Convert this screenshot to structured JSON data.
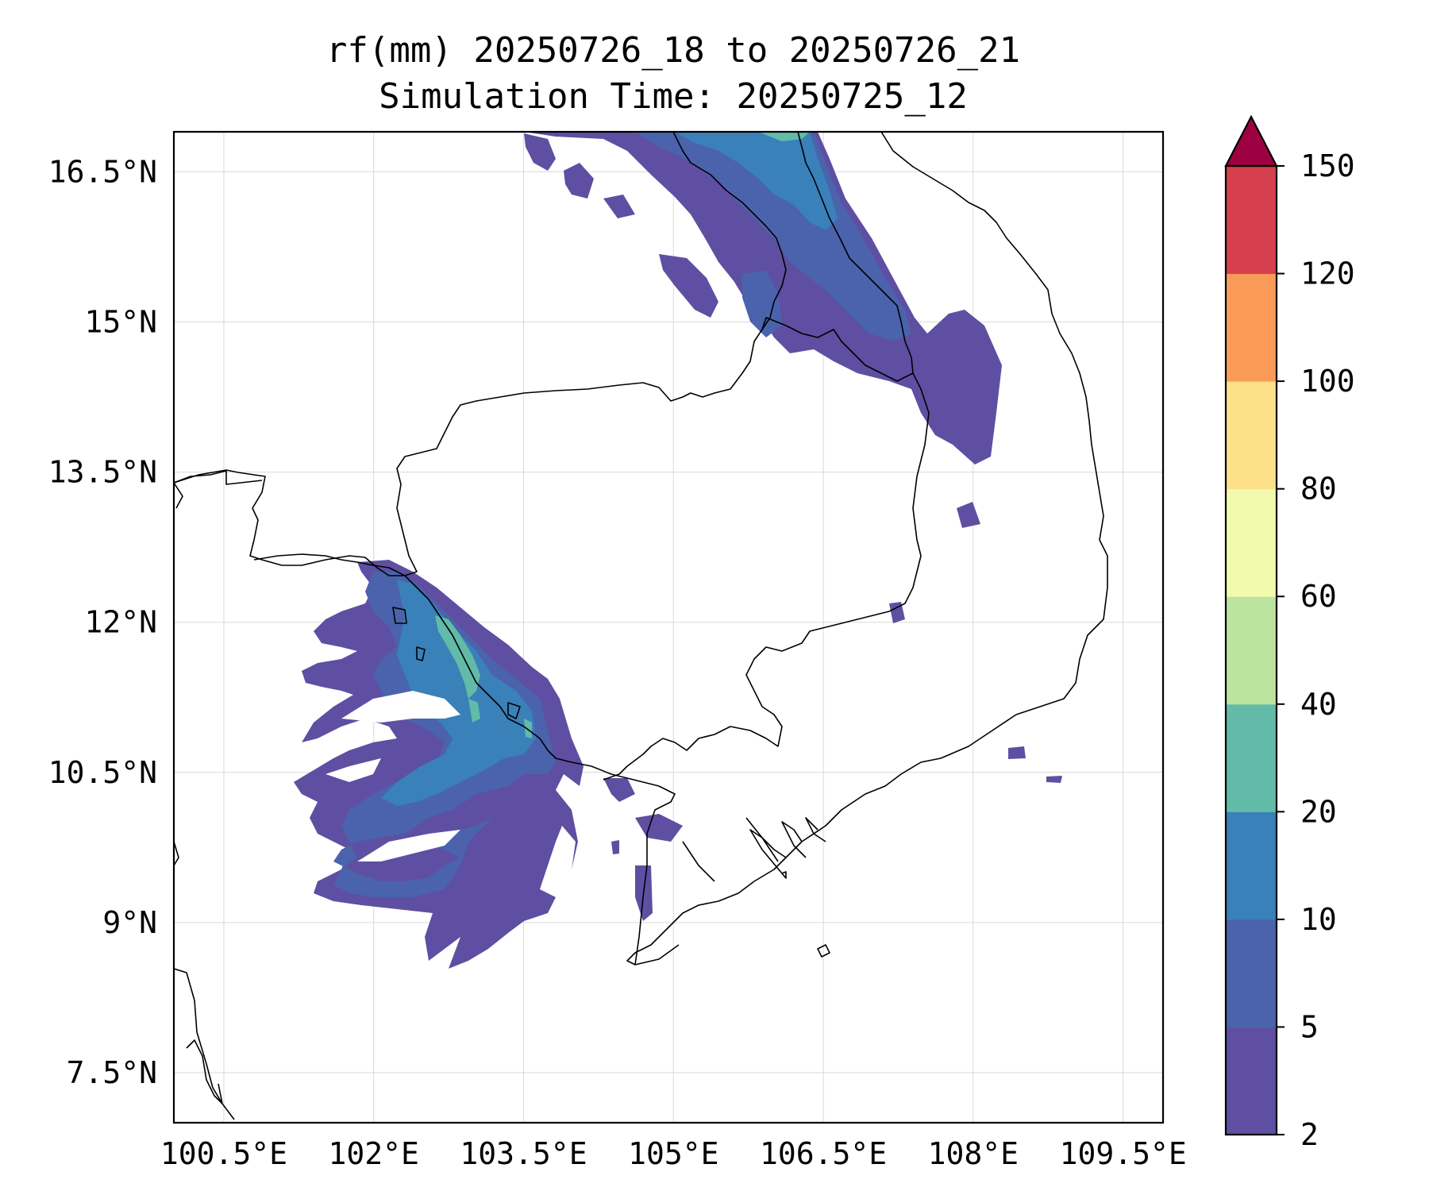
{
  "title": {
    "line1": "rf(mm) 20250726_18 to 20250726_21",
    "line2": "Simulation Time: 20250725_12"
  },
  "map": {
    "lon_range": [
      100.0,
      109.9
    ],
    "lat_range": [
      7.0,
      16.9
    ],
    "lon_ticks": [
      {
        "value": 100.5,
        "label": "100.5°E"
      },
      {
        "value": 102.0,
        "label": "102°E"
      },
      {
        "value": 103.5,
        "label": "103.5°E"
      },
      {
        "value": 105.0,
        "label": "105°E"
      },
      {
        "value": 106.5,
        "label": "106.5°E"
      },
      {
        "value": 108.0,
        "label": "108°E"
      },
      {
        "value": 109.5,
        "label": "109.5°E"
      }
    ],
    "lat_ticks": [
      {
        "value": 16.5,
        "label": "16.5°N"
      },
      {
        "value": 15.0,
        "label": "15°N"
      },
      {
        "value": 13.5,
        "label": "13.5°N"
      },
      {
        "value": 12.0,
        "label": "12°N"
      },
      {
        "value": 10.5,
        "label": "10.5°N"
      },
      {
        "value": 9.0,
        "label": "9°N"
      },
      {
        "value": 7.5,
        "label": "7.5°N"
      }
    ],
    "gridlines": true,
    "extend_color": "#9e0142"
  },
  "colorbar": {
    "levels": [
      {
        "label": "2",
        "color": "#5e4fa2"
      },
      {
        "label": "5",
        "color": "#4a63ac"
      },
      {
        "label": "10",
        "color": "#3a80b9"
      },
      {
        "label": "20",
        "color": "#62bba8"
      },
      {
        "label": "40",
        "color": "#bde3a0"
      },
      {
        "label": "60",
        "color": "#f2faad"
      },
      {
        "label": "80",
        "color": "#fde08a"
      },
      {
        "label": "100",
        "color": "#fa9c58"
      },
      {
        "label": "120",
        "color": "#d6404e"
      },
      {
        "label": "150",
        "color": null
      }
    ]
  }
}
